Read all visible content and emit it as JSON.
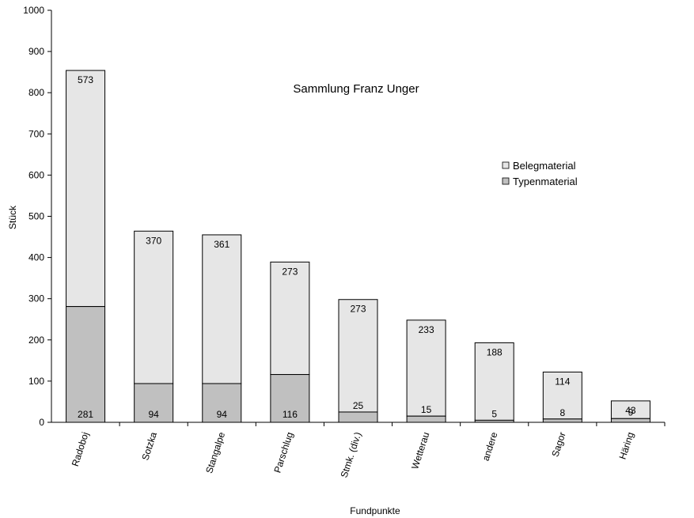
{
  "chart_data": {
    "type": "bar",
    "stacked": true,
    "title": "Sammlung Franz Unger",
    "xlabel": "Fundpunkte",
    "ylabel": "Stück",
    "ylim": [
      0,
      1000
    ],
    "yticks": [
      0,
      100,
      200,
      300,
      400,
      500,
      600,
      700,
      800,
      900,
      1000
    ],
    "categories": [
      "Radoboj",
      "Sotzka",
      "Stangalpe",
      "Parschlug",
      "Stmk. (div.)",
      "Wetterau",
      "andere",
      "Sagor",
      "Häring"
    ],
    "series": [
      {
        "name": "Typenmaterial",
        "values": [
          281,
          94,
          94,
          116,
          25,
          15,
          5,
          8,
          9
        ],
        "color": "#c0c0c0"
      },
      {
        "name": "Belegmaterial",
        "values": [
          573,
          370,
          361,
          273,
          273,
          233,
          188,
          114,
          43
        ],
        "color": "#e6e6e6"
      }
    ],
    "legend": [
      "Belegmaterial",
      "Typenmaterial"
    ],
    "legend_position": "right",
    "grid": false
  }
}
